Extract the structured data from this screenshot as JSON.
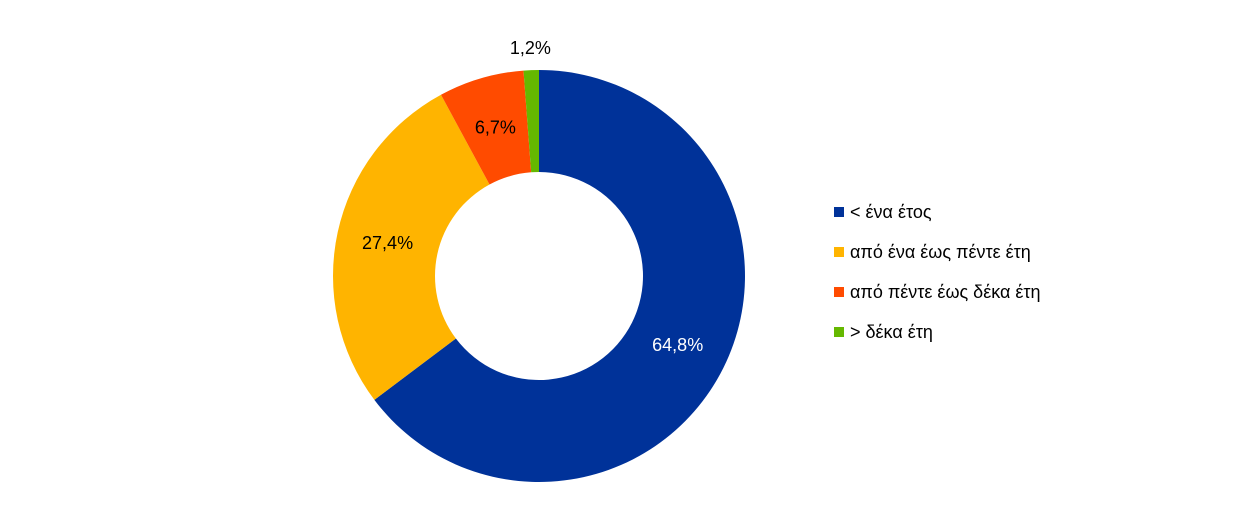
{
  "chart_data": {
    "type": "pie",
    "style": "donut",
    "categories": [
      "< ένα έτος",
      "από ένα έως πέντε έτη",
      "από πέντε έως δέκα έτη",
      "> δέκα έτη"
    ],
    "values": [
      64.8,
      27.4,
      6.7,
      1.2
    ],
    "value_labels": [
      "64,8%",
      "27,4%",
      "6,7%",
      "1,2%"
    ],
    "colors": [
      "#003299",
      "#FFB400",
      "#FF4B00",
      "#65B800"
    ],
    "label_colors": [
      "#FFFFFF",
      "#000000",
      "#000000",
      "#000000"
    ],
    "legend_position": "right",
    "start_angle": "top",
    "direction": "clockwise",
    "title": ""
  }
}
